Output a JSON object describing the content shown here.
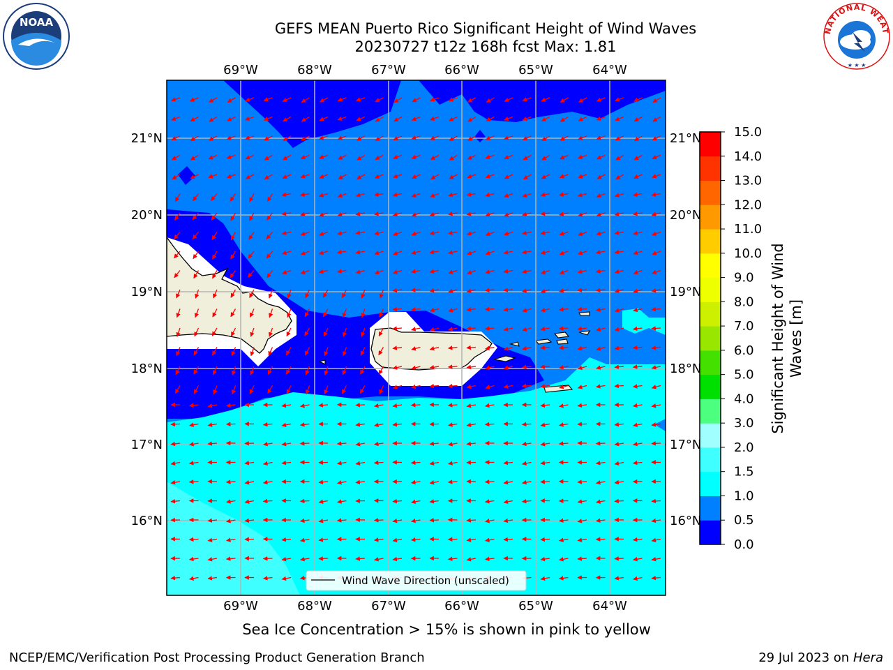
{
  "title": {
    "line1": "GEFS MEAN Puerto Rico Significant Height of Wind Waves",
    "line2": "20230727 t12z 168h fcst   Max: 1.81"
  },
  "map": {
    "lon_labels": [
      "69°W",
      "68°W",
      "67°W",
      "66°W",
      "65°W",
      "64°W"
    ],
    "lat_labels": [
      "21°N",
      "20°N",
      "19°N",
      "18°N",
      "17°N",
      "16°N"
    ],
    "legend_label": "Wind Wave Direction (unscaled)",
    "arrow_color": "#ff0000",
    "land_color": "#efefdc"
  },
  "colorbar": {
    "label": "Significant Height of Wind Waves [m]",
    "ticks": [
      "0.0",
      "0.5",
      "1.0",
      "1.5",
      "2.0",
      "3.0",
      "4.0",
      "5.0",
      "6.0",
      "7.0",
      "8.0",
      "9.0",
      "10.0",
      "11.0",
      "12.0",
      "13.0",
      "14.0",
      "15.0"
    ],
    "colors": [
      "#0000ff",
      "#0080ff",
      "#00ffff",
      "#40ffff",
      "#a0ffff",
      "#4cff7f",
      "#00e000",
      "#44e000",
      "#99e600",
      "#ccf000",
      "#eeff00",
      "#ffff00",
      "#ffcc00",
      "#ff9900",
      "#ff6600",
      "#ff3300",
      "#ff0000"
    ]
  },
  "footnote": "Sea Ice Concentration > 15% is shown in pink to yellow",
  "credit_left": "NCEP/EMC/Verification Post Processing Product Generation Branch",
  "credit_right_date": "29 Jul 2023 on",
  "credit_right_host": "Hera",
  "logos": {
    "noaa_text": "NOAA",
    "nws_text": "NATIONAL WEATHER SERVICE"
  }
}
